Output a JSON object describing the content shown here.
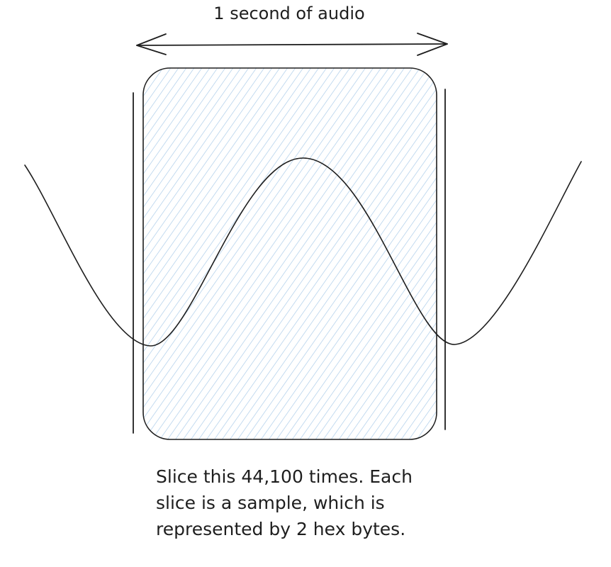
{
  "diagram": {
    "duration_label": "1 second of audio",
    "caption_lines": [
      "Slice this 44,100 times. Each",
      "slice is a sample, which is",
      "represented by 2 hex bytes."
    ],
    "colors": {
      "stroke": "#1e1e1e",
      "hatch": "#a5c8e8",
      "text": "#1e1e1e"
    }
  }
}
